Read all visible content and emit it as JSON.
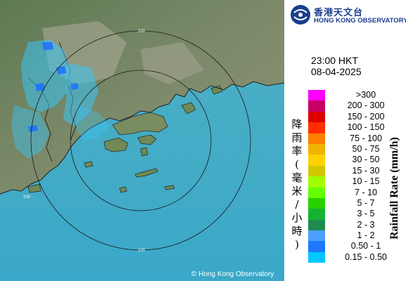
{
  "map": {
    "range_rings_km": [
      "100",
      "100",
      "100"
    ],
    "copyright": "© Hong Kong Observatory"
  },
  "header": {
    "logo_cn": "香港天文台",
    "logo_en": "HONG KONG OBSERVATORY"
  },
  "time": "23:00 HKT",
  "date": "08-04-2025",
  "legend": {
    "title_cn": [
      "降",
      "雨",
      "率",
      "(",
      "毫",
      "米",
      "/",
      "小",
      "時",
      ")"
    ],
    "title_en": "Rainfall Rate (mm/h)",
    "ranges": [
      {
        "label": ">300",
        "color": "#ff00ff"
      },
      {
        "label": "200 - 300",
        "color": "#c80064"
      },
      {
        "label": "150 - 200",
        "color": "#dc0000"
      },
      {
        "label": "100 - 150",
        "color": "#ff2d00"
      },
      {
        "label": "75 - 100",
        "color": "#ff7f00"
      },
      {
        "label": "50 - 75",
        "color": "#f0b400"
      },
      {
        "label": "30 - 50",
        "color": "#ffd200"
      },
      {
        "label": "15 - 30",
        "color": "#d2c800"
      },
      {
        "label": "10 - 15",
        "color": "#a0ff00"
      },
      {
        "label": "7 - 10",
        "color": "#64ff00"
      },
      {
        "label": "5 - 7",
        "color": "#28d200"
      },
      {
        "label": "3 - 5",
        "color": "#14b432"
      },
      {
        "label": "2 - 3",
        "color": "#1e8c50"
      },
      {
        "label": "1 - 2",
        "color": "#4ba0ff"
      },
      {
        "label": "0.50 - 1",
        "color": "#1e78ff"
      },
      {
        "label": "0.15 - 0.50",
        "color": "#00c8ff"
      }
    ]
  }
}
